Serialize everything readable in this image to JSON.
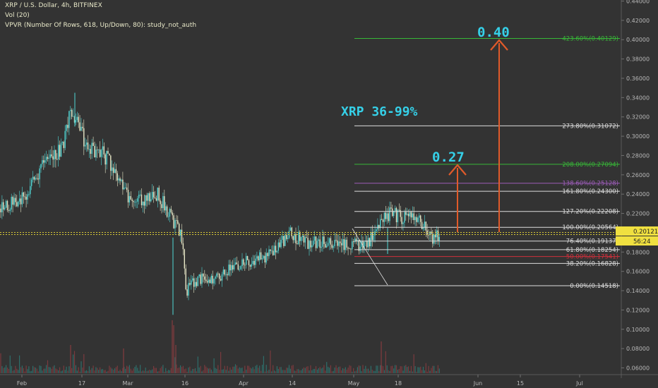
{
  "header": {
    "line1": "XRP / U.S. Dollar, 4h, BITFINEX",
    "line2": "Vol (20)",
    "line3": "VPVR (Number Of Rows, 618, Up/Down, 80): study_not_auth"
  },
  "colors": {
    "background": "#333333",
    "candle_up": "#4fd7d6",
    "candle_down": "#e8e8c8",
    "fib_green": "#38b838",
    "fib_white": "#dcdcdc",
    "fib_purple": "#9c5cb8",
    "fib_red": "#d0303c",
    "arrow": "#e05a2a",
    "target_text": "#35d0e8",
    "price_tag": "#f0e040"
  },
  "annotations": {
    "headline": "XRP 36-99%",
    "target_low": "0.27",
    "target_high": "0.40"
  },
  "price_tag": {
    "price": "0.20121",
    "countdown": "56:24"
  },
  "chart_data": {
    "type": "candlestick",
    "symbol": "XRP / U.S. Dollar",
    "interval": "4h",
    "exchange": "BITFINEX",
    "ylim": [
      0.05,
      0.44
    ],
    "y_ticks": [
      "0.44000",
      "0.42000",
      "0.40000",
      "0.38000",
      "0.36000",
      "0.34000",
      "0.32000",
      "0.30000",
      "0.28000",
      "0.26000",
      "0.24000",
      "0.22000",
      "0.20000",
      "0.18000",
      "0.16000",
      "0.14000",
      "0.12000",
      "0.10000",
      "0.08000",
      "0.06000"
    ],
    "x_ticks": [
      "Feb",
      "17",
      "Mar",
      "16",
      "Apr",
      "14",
      "May",
      "18",
      "Jun",
      "15",
      "Jul"
    ],
    "price_path": [
      {
        "date": "2020-01-28",
        "price": 0.225
      },
      {
        "date": "2020-02-03",
        "price": 0.245
      },
      {
        "date": "2020-02-07",
        "price": 0.275
      },
      {
        "date": "2020-02-11",
        "price": 0.29
      },
      {
        "date": "2020-02-13",
        "price": 0.33
      },
      {
        "date": "2020-02-15",
        "price": 0.305
      },
      {
        "date": "2020-02-17",
        "price": 0.29
      },
      {
        "date": "2020-02-20",
        "price": 0.285
      },
      {
        "date": "2020-02-23",
        "price": 0.27
      },
      {
        "date": "2020-02-27",
        "price": 0.235
      },
      {
        "date": "2020-03-01",
        "price": 0.235
      },
      {
        "date": "2020-03-05",
        "price": 0.24
      },
      {
        "date": "2020-03-09",
        "price": 0.21
      },
      {
        "date": "2020-03-11",
        "price": 0.195
      },
      {
        "date": "2020-03-12",
        "price": 0.14
      },
      {
        "date": "2020-03-14",
        "price": 0.15
      },
      {
        "date": "2020-03-20",
        "price": 0.155
      },
      {
        "date": "2020-03-26",
        "price": 0.17
      },
      {
        "date": "2020-04-01",
        "price": 0.175
      },
      {
        "date": "2020-04-06",
        "price": 0.2
      },
      {
        "date": "2020-04-10",
        "price": 0.19
      },
      {
        "date": "2020-04-15",
        "price": 0.19
      },
      {
        "date": "2020-04-21",
        "price": 0.185
      },
      {
        "date": "2020-04-27",
        "price": 0.195
      },
      {
        "date": "2020-04-29",
        "price": 0.215
      },
      {
        "date": "2020-05-01",
        "price": 0.22
      },
      {
        "date": "2020-05-04",
        "price": 0.215
      },
      {
        "date": "2020-05-08",
        "price": 0.215
      },
      {
        "date": "2020-05-10",
        "price": 0.195
      },
      {
        "date": "2020-05-12",
        "price": 0.195
      },
      {
        "date": "2020-05-16",
        "price": 0.2
      },
      {
        "date": "2020-05-20",
        "price": 0.2
      },
      {
        "date": "2020-05-24",
        "price": 0.195
      },
      {
        "date": "2020-05-27",
        "price": 0.2
      }
    ],
    "fibonacci": [
      {
        "label": "423.60%(0.40129)",
        "price": 0.40129,
        "color": "#38b838"
      },
      {
        "label": "273.80%(0.31072)",
        "price": 0.31072,
        "color": "#dcdcdc"
      },
      {
        "label": "208.00%(0.27094)",
        "price": 0.27094,
        "color": "#38b838"
      },
      {
        "label": "138.60%(0.25128)",
        "price": 0.25128,
        "color": "#9c5cb8"
      },
      {
        "label": "161.80%(0.24300)",
        "price": 0.243,
        "color": "#dcdcdc"
      },
      {
        "label": "127.20%(0.22208)",
        "price": 0.22208,
        "color": "#dcdcdc"
      },
      {
        "label": "100.00%(0.20564)",
        "price": 0.20564,
        "color": "#dcdcdc"
      },
      {
        "label": "76.40%(0.19137)",
        "price": 0.19137,
        "color": "#dcdcdc"
      },
      {
        "label": "61.80%(0.18254)",
        "price": 0.18254,
        "color": "#dcdcdc"
      },
      {
        "label": "50.00%(0.17541)",
        "price": 0.17541,
        "color": "#d0303c"
      },
      {
        "label": "38.20%(0.16828)",
        "price": 0.16828,
        "color": "#dcdcdc"
      },
      {
        "label": "0.00%(0.14518)",
        "price": 0.14518,
        "color": "#dcdcdc"
      }
    ],
    "targets": [
      {
        "label": "0.27",
        "price": 0.27,
        "date": "2020-06-05"
      },
      {
        "label": "0.40",
        "price": 0.4,
        "date": "2020-06-10"
      }
    ],
    "last_price": 0.20121
  }
}
